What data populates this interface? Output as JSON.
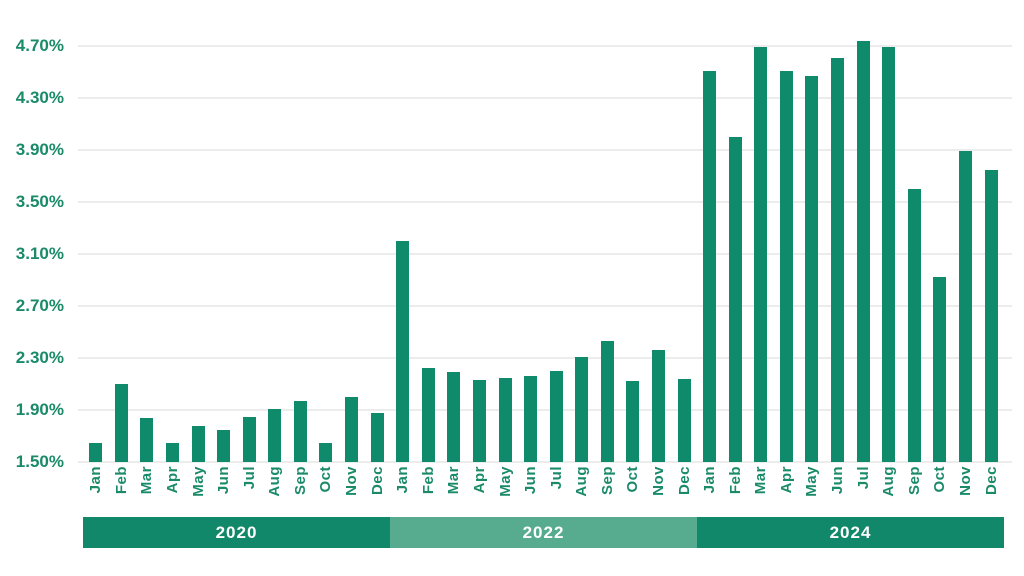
{
  "chart_data": {
    "type": "bar",
    "title": "",
    "xlabel": "",
    "ylabel": "",
    "unit": "%",
    "grid": true,
    "legend": "none",
    "ylim": [
      1.5,
      4.7
    ],
    "y_ticks": [
      1.5,
      1.9,
      2.3,
      2.7,
      3.1,
      3.5,
      3.9,
      4.3,
      4.7
    ],
    "y_tick_labels": [
      "1.50%",
      "1.90%",
      "2.30%",
      "2.70%",
      "3.10%",
      "3.50%",
      "3.90%",
      "4.30%",
      "4.70%"
    ],
    "categories": [
      "Jan",
      "Feb",
      "Mar",
      "Apr",
      "May",
      "Jun",
      "Jul",
      "Aug",
      "Sep",
      "Oct",
      "Nov",
      "Dec",
      "Jan",
      "Feb",
      "Mar",
      "Apr",
      "May",
      "Jun",
      "Jul",
      "Aug",
      "Sep",
      "Oct",
      "Nov",
      "Dec",
      "Jan",
      "Feb",
      "Mar",
      "Apr",
      "May",
      "Jun",
      "Jul",
      "Aug",
      "Sep",
      "Oct",
      "Nov",
      "Dec"
    ],
    "values": [
      1.65,
      2.1,
      1.84,
      1.65,
      1.78,
      1.75,
      1.85,
      1.91,
      1.97,
      1.65,
      2.0,
      1.88,
      3.2,
      2.22,
      2.19,
      2.13,
      2.15,
      2.16,
      2.2,
      2.31,
      2.43,
      2.12,
      2.36,
      2.14,
      4.51,
      4.0,
      4.69,
      4.51,
      4.47,
      4.61,
      4.74,
      4.69,
      3.6,
      2.92,
      3.89,
      3.75
    ],
    "year_groups": [
      {
        "label": "2020",
        "color": "#12886a",
        "months": 12
      },
      {
        "label": "2022",
        "color": "#57ab8f",
        "months": 12
      },
      {
        "label": "2024",
        "color": "#12886a",
        "months": 12
      }
    ],
    "theme": {
      "bar_color": "#0f8a6a",
      "axis_text_color": "#1a8a68",
      "gridline_color": "#ececec",
      "band_text_color": "#ffffff",
      "background": "#ffffff"
    }
  }
}
